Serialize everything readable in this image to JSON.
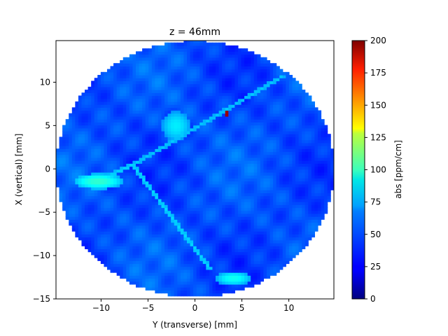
{
  "chart_data": {
    "type": "heatmap",
    "title": "z = 46mm",
    "xlabel": "Y (transverse) [mm]",
    "ylabel": "X (vertical) [mm]",
    "xlim": [
      -14.8,
      14.8
    ],
    "ylim": [
      -15,
      14.8
    ],
    "xticks": [
      -10,
      -5,
      0,
      5,
      10
    ],
    "yticks": [
      -15,
      -10,
      -5,
      0,
      5,
      10
    ],
    "colorbar": {
      "label": "abs [ppm/cm]",
      "range": [
        0,
        200
      ],
      "ticks": [
        0,
        25,
        50,
        75,
        100,
        125,
        150,
        175,
        200
      ],
      "colormap": "jet"
    },
    "background_level": 40,
    "features": [
      {
        "kind": "disk",
        "center": [
          0,
          0
        ],
        "radius": 14.8,
        "value": 40
      },
      {
        "kind": "blob",
        "center": [
          -10.3,
          -1.4
        ],
        "size": [
          2.6,
          0.9
        ],
        "value": 85
      },
      {
        "kind": "blob",
        "center": [
          -2.0,
          5.0
        ],
        "size": [
          1.5,
          1.7
        ],
        "value": 72
      },
      {
        "kind": "blob",
        "center": [
          4.1,
          -12.6
        ],
        "size": [
          1.9,
          0.8
        ],
        "value": 78
      },
      {
        "kind": "hotspot",
        "center": [
          3.3,
          6.4
        ],
        "value": 195
      },
      {
        "kind": "line",
        "from": [
          -6.6,
          0.5
        ],
        "to": [
          9.3,
          10.7
        ],
        "value": 65
      },
      {
        "kind": "line",
        "from": [
          -6.6,
          0.5
        ],
        "to": [
          1.6,
          -11.5
        ],
        "value": 68
      },
      {
        "kind": "line",
        "from": [
          -6.6,
          0.5
        ],
        "to": [
          -10.0,
          -1.2
        ],
        "value": 68
      }
    ]
  }
}
